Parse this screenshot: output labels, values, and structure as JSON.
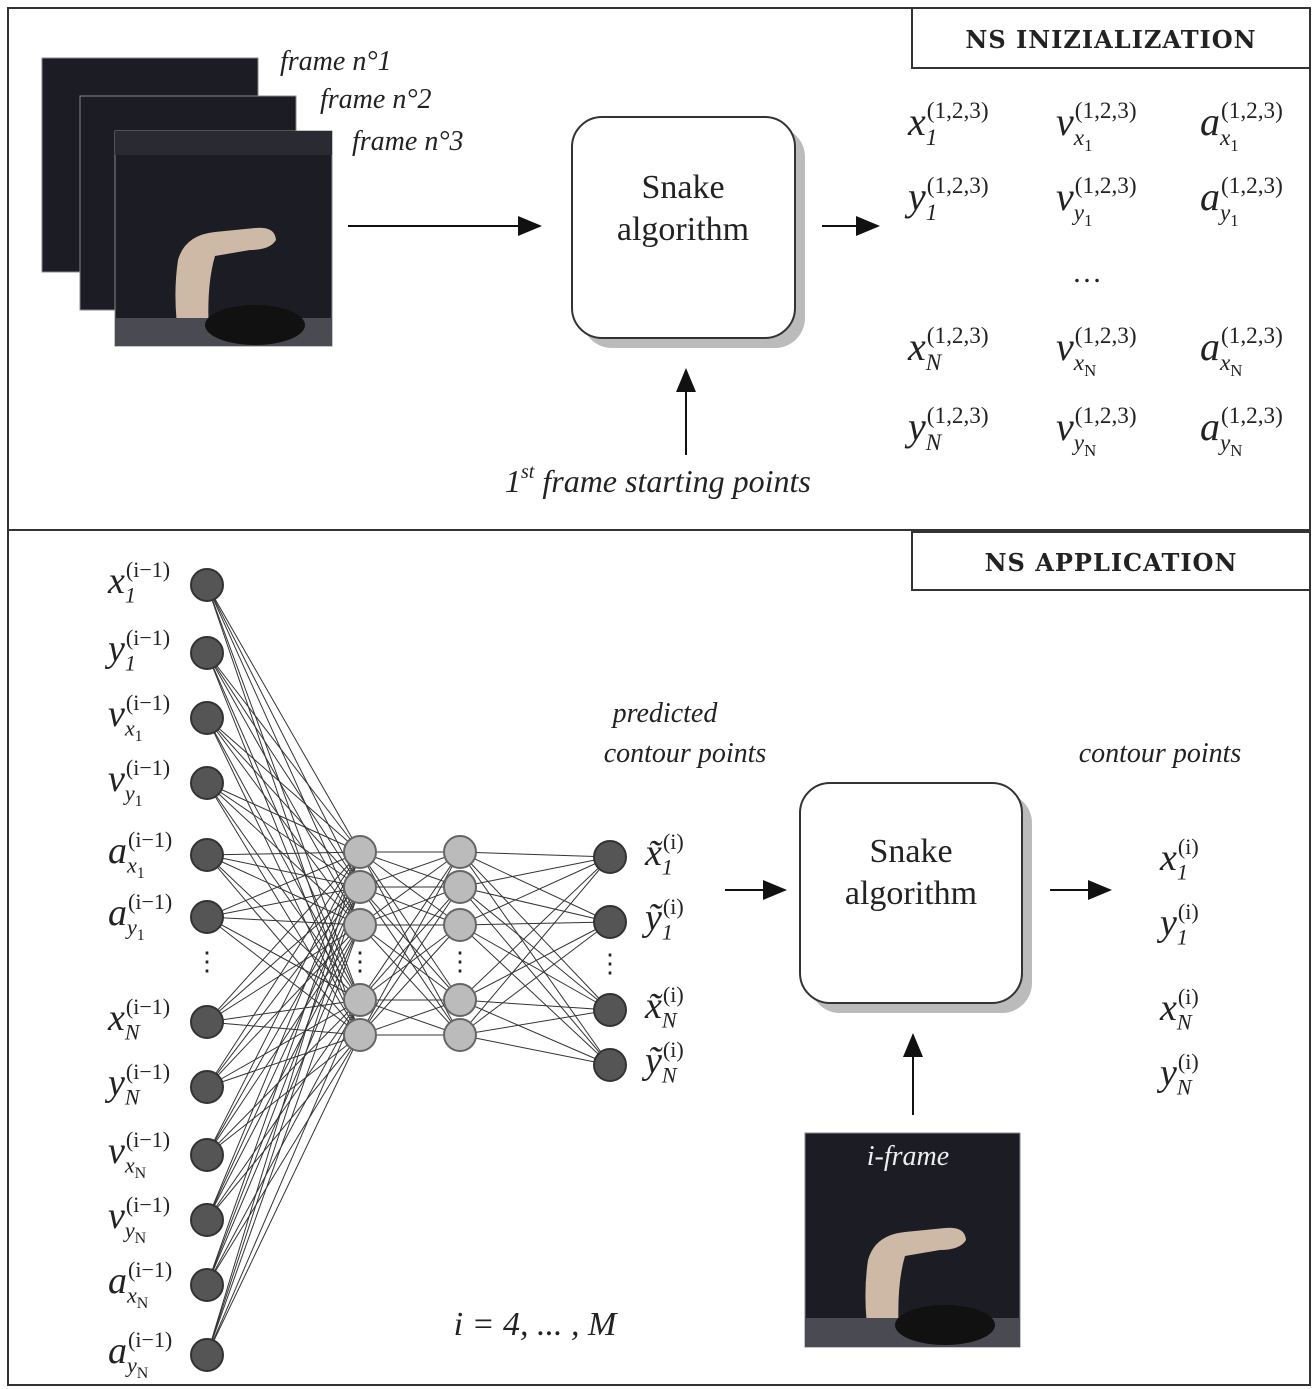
{
  "top": {
    "title": "NS INIZIALIZATION",
    "frames": [
      "frame n°1",
      "frame n°2",
      "frame n°3"
    ],
    "process": [
      "Snake",
      "algorithm"
    ],
    "start": {
      "num": "1",
      "sup": "st",
      "text": " frame starting points"
    },
    "outputs": [
      [
        {
          "base": "x",
          "sub": "1",
          "sup": "(1,2,3)"
        },
        {
          "base": "v",
          "sub": "x",
          "subsub": "1",
          "sup": "(1,2,3)"
        },
        {
          "base": "a",
          "sub": "x",
          "subsub": "1",
          "sup": "(1,2,3)"
        }
      ],
      [
        {
          "base": "y",
          "sub": "1",
          "sup": "(1,2,3)"
        },
        {
          "base": "v",
          "sub": "y",
          "subsub": "1",
          "sup": "(1,2,3)"
        },
        {
          "base": "a",
          "sub": "y",
          "subsub": "1",
          "sup": "(1,2,3)"
        }
      ],
      [
        {
          "base": "x",
          "sub": "N",
          "sup": "(1,2,3)"
        },
        {
          "base": "v",
          "sub": "x",
          "subsub": "N",
          "sup": "(1,2,3)"
        },
        {
          "base": "a",
          "sub": "x",
          "subsub": "N",
          "sup": "(1,2,3)"
        }
      ],
      [
        {
          "base": "y",
          "sub": "N",
          "sup": "(1,2,3)"
        },
        {
          "base": "v",
          "sub": "y",
          "subsub": "N",
          "sup": "(1,2,3)"
        },
        {
          "base": "a",
          "sub": "y",
          "subsub": "N",
          "sup": "(1,2,3)"
        }
      ]
    ],
    "ellipsis": "…"
  },
  "bottom": {
    "title": "NS APPLICATION",
    "inputs": [
      {
        "base": "x",
        "sub": "1",
        "sup": "(i−1)"
      },
      {
        "base": "y",
        "sub": "1",
        "sup": "(i−1)"
      },
      {
        "base": "v",
        "sub": "x",
        "subsub": "1",
        "sup": "(i−1)"
      },
      {
        "base": "v",
        "sub": "y",
        "subsub": "1",
        "sup": "(i−1)"
      },
      {
        "base": "a",
        "sub": "x",
        "subsub": "1",
        "sup": "(i−1)"
      },
      {
        "base": "a",
        "sub": "y",
        "subsub": "1",
        "sup": "(i−1)"
      },
      {
        "base": "x",
        "sub": "N",
        "sup": "(i−1)"
      },
      {
        "base": "y",
        "sub": "N",
        "sup": "(i−1)"
      },
      {
        "base": "v",
        "sub": "x",
        "subsub": "N",
        "sup": "(i−1)"
      },
      {
        "base": "v",
        "sub": "y",
        "subsub": "N",
        "sup": "(i−1)"
      },
      {
        "base": "a",
        "sub": "x",
        "subsub": "N",
        "sup": "(i−1)"
      },
      {
        "base": "a",
        "sub": "y",
        "subsub": "N",
        "sup": "(i−1)"
      }
    ],
    "vdots": "⋮",
    "predicted_label": [
      "predicted",
      "contour points"
    ],
    "predicted": [
      {
        "base": "x̃",
        "sub": "1",
        "sup": "(i)"
      },
      {
        "base": "ỹ",
        "sub": "1",
        "sup": "(i)"
      },
      {
        "base": "x̃",
        "sub": "N",
        "sup": "(i)"
      },
      {
        "base": "ỹ",
        "sub": "N",
        "sup": "(i)"
      }
    ],
    "process": [
      "Snake",
      "algorithm"
    ],
    "output_label": "contour points",
    "outputs": [
      {
        "base": "x",
        "sub": "1",
        "sup": "(i)"
      },
      {
        "base": "y",
        "sub": "1",
        "sup": "(i)"
      },
      {
        "base": "x",
        "sub": "N",
        "sup": "(i)"
      },
      {
        "base": "y",
        "sub": "N",
        "sup": "(i)"
      }
    ],
    "frame_label": "i-frame",
    "range": "i = 4, ... , M"
  }
}
